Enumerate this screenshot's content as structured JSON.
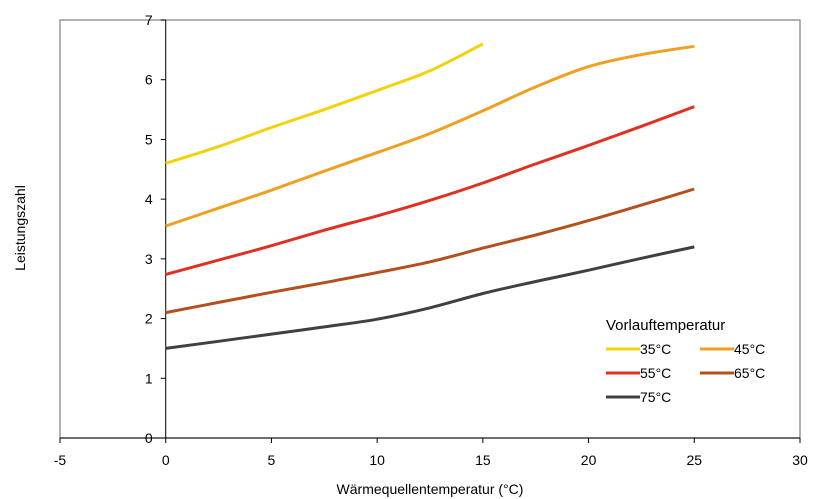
{
  "chart_data": {
    "type": "line",
    "xlabel": "Wärmequellentemperatur (°C)",
    "ylabel": "Leistungszahl",
    "xlim": [
      -5,
      30
    ],
    "ylim": [
      0,
      7
    ],
    "x_ticks": [
      -5,
      0,
      5,
      10,
      15,
      20,
      25,
      30
    ],
    "y_ticks": [
      0,
      1,
      2,
      3,
      4,
      5,
      6,
      7
    ],
    "grid": false,
    "legend_title": "Vorlauftemperatur",
    "legend_position": "bottom-right",
    "series": [
      {
        "name": "35°C",
        "color": "#f2d20c",
        "x": [
          0,
          2.5,
          5,
          7.5,
          10,
          12.5,
          15
        ],
        "y": [
          4.6,
          4.88,
          5.2,
          5.5,
          5.82,
          6.15,
          6.6
        ]
      },
      {
        "name": "45°C",
        "color": "#f0a020",
        "x": [
          0,
          2.5,
          5,
          7.5,
          10,
          12.5,
          15,
          17.5,
          20,
          22.5,
          25
        ],
        "y": [
          3.55,
          3.85,
          4.15,
          4.47,
          4.78,
          5.1,
          5.48,
          5.88,
          6.22,
          6.42,
          6.56
        ]
      },
      {
        "name": "55°C",
        "color": "#e03020",
        "x": [
          0,
          2.5,
          5,
          7.5,
          10,
          12.5,
          15,
          17.5,
          20,
          22.5,
          25
        ],
        "y": [
          2.74,
          2.98,
          3.22,
          3.48,
          3.72,
          3.98,
          4.27,
          4.59,
          4.9,
          5.22,
          5.55
        ]
      },
      {
        "name": "65°C",
        "color": "#b4501e",
        "x": [
          0,
          2.5,
          5,
          7.5,
          10,
          12.5,
          15,
          17.5,
          20,
          22.5,
          25
        ],
        "y": [
          2.1,
          2.27,
          2.44,
          2.6,
          2.77,
          2.95,
          3.18,
          3.4,
          3.64,
          3.9,
          4.17
        ]
      },
      {
        "name": "75°C",
        "color": "#404040",
        "x": [
          0,
          2.5,
          5,
          7.5,
          10,
          12.5,
          15,
          17.5,
          20,
          22.5,
          25
        ],
        "y": [
          1.5,
          1.62,
          1.74,
          1.86,
          1.99,
          2.18,
          2.42,
          2.62,
          2.81,
          3.01,
          3.2
        ]
      }
    ]
  }
}
